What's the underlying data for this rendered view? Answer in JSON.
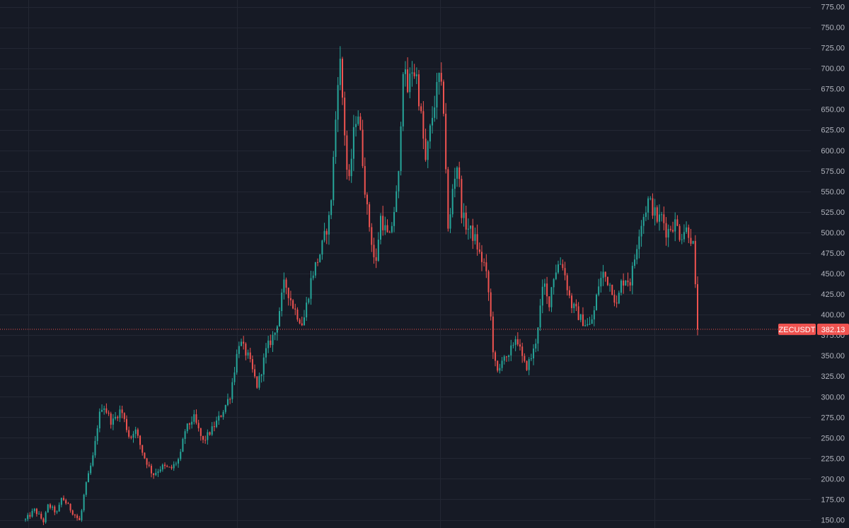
{
  "chart_data": {
    "type": "candlestick",
    "symbol": "ZECUSDT",
    "last_price": 382.13,
    "last_price_label": "382.13",
    "ylim": [
      140,
      785
    ],
    "y_ticks": [
      {
        "value": 775,
        "label": "775.00"
      },
      {
        "value": 750,
        "label": "750.00"
      },
      {
        "value": 725,
        "label": "725.00"
      },
      {
        "value": 700,
        "label": "700.00"
      },
      {
        "value": 675,
        "label": "675.00"
      },
      {
        "value": 650,
        "label": "650.00"
      },
      {
        "value": 625,
        "label": "625.00"
      },
      {
        "value": 600,
        "label": "600.00"
      },
      {
        "value": 575,
        "label": "575.00"
      },
      {
        "value": 550,
        "label": "550.00"
      },
      {
        "value": 525,
        "label": "525.00"
      },
      {
        "value": 500,
        "label": "500.00"
      },
      {
        "value": 475,
        "label": "475.00"
      },
      {
        "value": 450,
        "label": "450.00"
      },
      {
        "value": 425,
        "label": "425.00"
      },
      {
        "value": 400,
        "label": "400.00"
      },
      {
        "value": 375,
        "label": "375.00"
      },
      {
        "value": 350,
        "label": "350.00"
      },
      {
        "value": 325,
        "label": "325.00"
      },
      {
        "value": 300,
        "label": "300.00"
      },
      {
        "value": 275,
        "label": "275.00"
      },
      {
        "value": 250,
        "label": "250.00"
      },
      {
        "value": 225,
        "label": "225.00"
      },
      {
        "value": 200,
        "label": "200.00"
      },
      {
        "value": 175,
        "label": "175.00"
      },
      {
        "value": 150,
        "label": "150.00"
      }
    ],
    "colors": {
      "background": "#161a25",
      "grid": "#232733",
      "up": "#26a69a",
      "down": "#ef5350",
      "price_line": "#ef5350",
      "axis_text": "#b2b5be",
      "tag_text": "#ffffff"
    },
    "price_path": [
      [
        0,
        150
      ],
      [
        2,
        162
      ],
      [
        4,
        148
      ],
      [
        5,
        168
      ],
      [
        7,
        158
      ],
      [
        8,
        178
      ],
      [
        10,
        162
      ],
      [
        12,
        148
      ],
      [
        13,
        185
      ],
      [
        15,
        230
      ],
      [
        16,
        272
      ],
      [
        17,
        292
      ],
      [
        19,
        268
      ],
      [
        21,
        285
      ],
      [
        23,
        248
      ],
      [
        24,
        262
      ],
      [
        26,
        228
      ],
      [
        28,
        205
      ],
      [
        30,
        215
      ],
      [
        32,
        212
      ],
      [
        34,
        226
      ],
      [
        35,
        258
      ],
      [
        37,
        275
      ],
      [
        39,
        245
      ],
      [
        41,
        260
      ],
      [
        43,
        278
      ],
      [
        45,
        302
      ],
      [
        47,
        368
      ],
      [
        49,
        348
      ],
      [
        51,
        312
      ],
      [
        53,
        358
      ],
      [
        55,
        380
      ],
      [
        57,
        440
      ],
      [
        59,
        408
      ],
      [
        61,
        388
      ],
      [
        63,
        448
      ],
      [
        65,
        478
      ],
      [
        67,
        522
      ],
      [
        68,
        615
      ],
      [
        69,
        722
      ],
      [
        70,
        640
      ],
      [
        71,
        548
      ],
      [
        72,
        612
      ],
      [
        73,
        655
      ],
      [
        74,
        598
      ],
      [
        75,
        532
      ],
      [
        76,
        495
      ],
      [
        77,
        455
      ],
      [
        78,
        520
      ],
      [
        80,
        490
      ],
      [
        82,
        560
      ],
      [
        83,
        705
      ],
      [
        84,
        672
      ],
      [
        85,
        700
      ],
      [
        86,
        690
      ],
      [
        87,
        640
      ],
      [
        88,
        585
      ],
      [
        89,
        625
      ],
      [
        90,
        660
      ],
      [
        91,
        690
      ],
      [
        92,
        650
      ],
      [
        93,
        490
      ],
      [
        94,
        560
      ],
      [
        95,
        585
      ],
      [
        96,
        520
      ],
      [
        97,
        508
      ],
      [
        98,
        500
      ],
      [
        99,
        490
      ],
      [
        100,
        470
      ],
      [
        101,
        460
      ],
      [
        102,
        420
      ],
      [
        103,
        345
      ],
      [
        104,
        325
      ],
      [
        105,
        355
      ],
      [
        106,
        340
      ],
      [
        107,
        362
      ],
      [
        108,
        375
      ],
      [
        109,
        350
      ],
      [
        110,
        335
      ],
      [
        111,
        345
      ],
      [
        112,
        360
      ],
      [
        113,
        400
      ],
      [
        114,
        440
      ],
      [
        115,
        410
      ],
      [
        116,
        445
      ],
      [
        117,
        460
      ],
      [
        118,
        465
      ],
      [
        119,
        438
      ],
      [
        120,
        412
      ],
      [
        121,
        405
      ],
      [
        122,
        395
      ],
      [
        123,
        390
      ],
      [
        124,
        385
      ],
      [
        125,
        402
      ],
      [
        126,
        436
      ],
      [
        127,
        450
      ],
      [
        128,
        442
      ],
      [
        129,
        432
      ],
      [
        130,
        410
      ],
      [
        131,
        438
      ],
      [
        132,
        445
      ],
      [
        133,
        440
      ],
      [
        134,
        470
      ],
      [
        135,
        505
      ],
      [
        136,
        522
      ],
      [
        137,
        540
      ],
      [
        138,
        528
      ],
      [
        139,
        515
      ],
      [
        140,
        520
      ],
      [
        141,
        500
      ],
      [
        142,
        508
      ],
      [
        143,
        512
      ],
      [
        144,
        495
      ],
      [
        145,
        505
      ],
      [
        146,
        500
      ],
      [
        147,
        480
      ],
      [
        147.5,
        400
      ],
      [
        147.8,
        383
      ]
    ],
    "x_count": 148
  }
}
